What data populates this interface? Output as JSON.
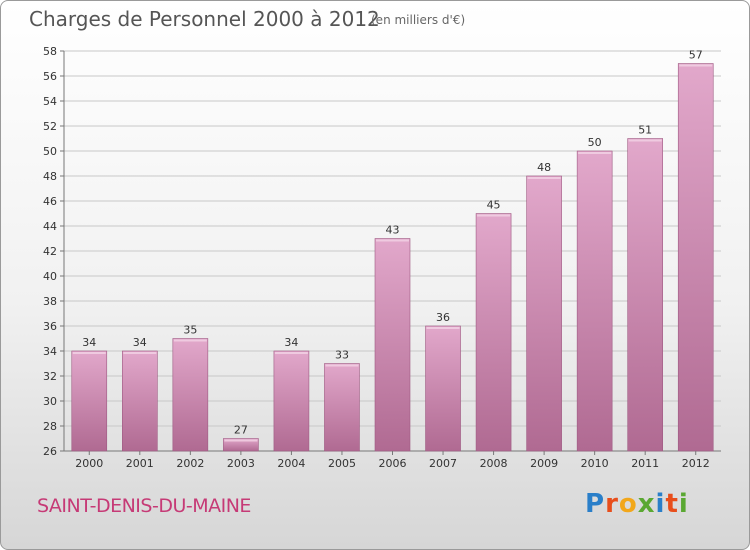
{
  "header": {
    "title": "Charges de Personnel 2000 à 2012",
    "subtitle": "(en milliers d'€)"
  },
  "footer": {
    "commune": "SAINT-DENIS-DU-MAINE",
    "logo_letters": [
      "P",
      "r",
      "o",
      "x",
      "i",
      "t",
      "i"
    ],
    "logo_colors": [
      "#2a7fc9",
      "#e84e1b",
      "#f2a71b",
      "#5aa832",
      "#2a7fc9",
      "#e84e1b",
      "#5aa832"
    ]
  },
  "colors": {
    "bar_top": "#e2a8cb",
    "bar_bottom": "#b06a92",
    "bar_edge": "#9e5a82",
    "grid": "#c8c8c8",
    "title": "#555555",
    "commune": "#c63a76"
  },
  "chart_data": {
    "type": "bar",
    "categories": [
      "2000",
      "2001",
      "2002",
      "2003",
      "2004",
      "2005",
      "2006",
      "2007",
      "2008",
      "2009",
      "2010",
      "2011",
      "2012"
    ],
    "values": [
      34,
      34,
      35,
      27,
      34,
      33,
      43,
      36,
      45,
      48,
      50,
      51,
      57
    ],
    "title": "Charges de Personnel 2000 à 2012",
    "subtitle": "(en milliers d'€)",
    "xlabel": "",
    "ylabel": "",
    "ylim": [
      26,
      58
    ],
    "yticks": [
      26,
      28,
      30,
      32,
      34,
      36,
      38,
      40,
      42,
      44,
      46,
      48,
      50,
      52,
      54,
      56,
      58
    ],
    "grid": true,
    "legend": "none"
  }
}
